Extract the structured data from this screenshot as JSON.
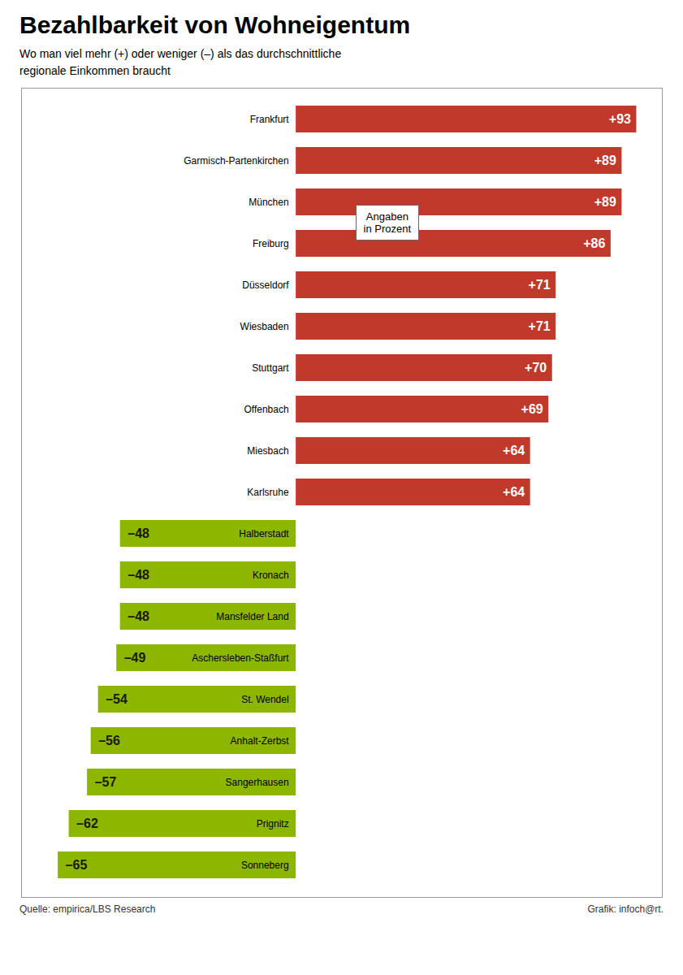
{
  "chart_data": {
    "type": "bar",
    "orientation": "horizontal",
    "title": "Bezahlbarkeit von Wohneigentum",
    "subtitle": "Wo man viel mehr (+) oder weniger (–) als das durchschnittliche\nregionale Einkommen braucht",
    "annotation": "Angaben\nin Prozent",
    "source": "Quelle: empirica/LBS Research",
    "credit": "Grafik: infoch@rt.",
    "categories": [
      "Frankfurt",
      "Garmisch-Partenkirchen",
      "München",
      "Freiburg",
      "Düsseldorf",
      "Wiesbaden",
      "Stuttgart",
      "Offenbach",
      "Miesbach",
      "Karlsruhe",
      "Halberstadt",
      "Kronach",
      "Mansfelder Land",
      "Aschersleben-Staßfurt",
      "St. Wendel",
      "Anhalt-Zerbst",
      "Sangerhausen",
      "Prignitz",
      "Sonneberg"
    ],
    "values": [
      93,
      89,
      89,
      86,
      71,
      71,
      70,
      69,
      64,
      64,
      -48,
      -48,
      -48,
      -49,
      -54,
      -56,
      -57,
      -62,
      -65
    ],
    "value_labels": [
      "+93",
      "+89",
      "+89",
      "+86",
      "+71",
      "+71",
      "+70",
      "+69",
      "+64",
      "+64",
      "–48",
      "–48",
      "–48",
      "–49",
      "–54",
      "–56",
      "–57",
      "–62",
      "–65"
    ],
    "colors": [
      "#c0392b",
      "#c0392b",
      "#c0392b",
      "#c0392b",
      "#c0392b",
      "#c0392b",
      "#c0392b",
      "#c0392b",
      "#c0392b",
      "#c0392b",
      "#8db600",
      "#8db600",
      "#8db600",
      "#8db600",
      "#8db600",
      "#8db600",
      "#8db600",
      "#8db600",
      "#8db600"
    ],
    "xlim": [
      -75,
      100
    ],
    "data_labels": true,
    "tick_labels": "y",
    "grid": false
  }
}
